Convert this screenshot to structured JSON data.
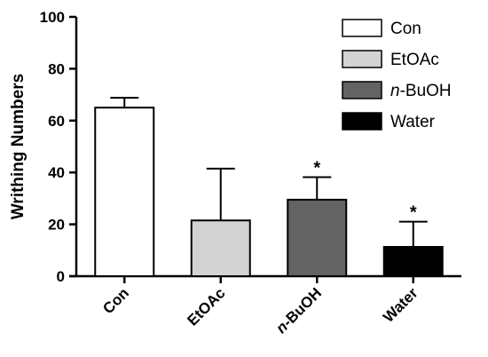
{
  "chart_data": {
    "type": "bar",
    "title": "",
    "xlabel": "",
    "ylabel": "Writhing Numbers",
    "ylim": [
      0,
      100
    ],
    "yticks": [
      0,
      20,
      40,
      60,
      80,
      100
    ],
    "categories": [
      "Con",
      "EtOAc",
      "n-BuOH",
      "Water"
    ],
    "category_parts": [
      {
        "italic": "",
        "rest": "Con"
      },
      {
        "italic": "",
        "rest": "EtOAc"
      },
      {
        "italic": "n",
        "rest": "-BuOH"
      },
      {
        "italic": "",
        "rest": "Water"
      }
    ],
    "values": [
      65,
      21.5,
      29.5,
      11.3
    ],
    "error": [
      3.8,
      20,
      8.7,
      9.7
    ],
    "significance": [
      "",
      "",
      "*",
      "*"
    ],
    "colors": [
      "#ffffff",
      "#d3d3d3",
      "#636363",
      "#000000"
    ],
    "legend": {
      "placement": "top-right",
      "entries": [
        {
          "italic": "",
          "rest": "Con"
        },
        {
          "italic": "",
          "rest": "EtOAc"
        },
        {
          "italic": "n",
          "rest": "-BuOH"
        },
        {
          "italic": "",
          "rest": "Water"
        }
      ]
    },
    "grid": false
  }
}
